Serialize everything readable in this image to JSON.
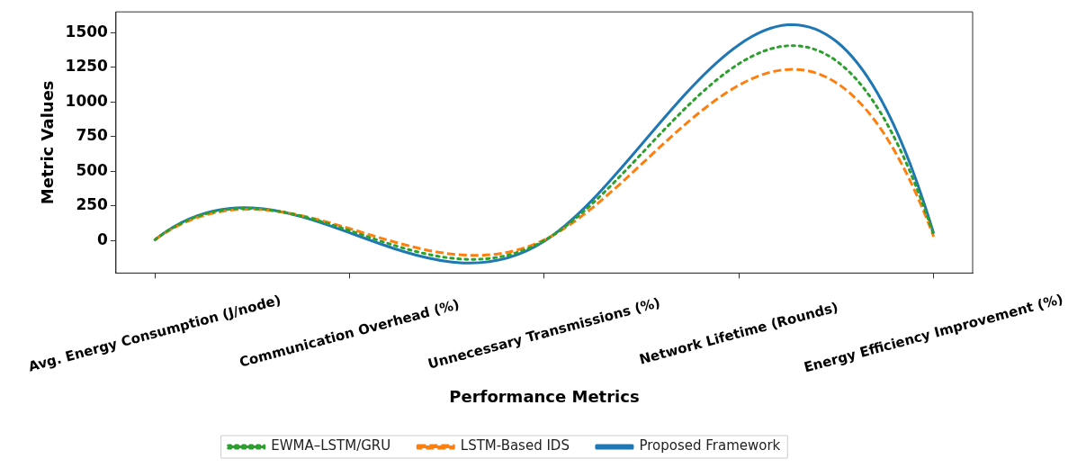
{
  "chart_data": {
    "type": "line",
    "xlabel": "Performance Metrics",
    "ylabel": "Metric Values",
    "categories": [
      "Avg. Energy Consumption (J/node)",
      "Communication Overhead (%)",
      "Unnecessary Transmissions (%)",
      "Network Lifetime (Rounds)",
      "Energy Efficiency Improvement (%)"
    ],
    "ylim": [
      -235,
      1650
    ],
    "yticks": [
      0,
      250,
      500,
      750,
      1000,
      1250,
      1500
    ],
    "series": [
      {
        "name": "Proposed Framework",
        "color": "#1f77b4",
        "line_style": "solid",
        "values": [
          5,
          56,
          -5,
          1413,
          50
        ]
      },
      {
        "name": "LSTM-Based IDS",
        "color": "#ff7f0e",
        "line_style": "dashed",
        "values": [
          5,
          86,
          5,
          1121,
          28
        ]
      },
      {
        "name": "EWMA–LSTM/GRU",
        "color": "#2ca02c",
        "line_style": "dotted",
        "values": [
          5,
          71,
          0,
          1276,
          39
        ]
      }
    ],
    "grid": false,
    "legend": "bottom",
    "marker": "none"
  }
}
